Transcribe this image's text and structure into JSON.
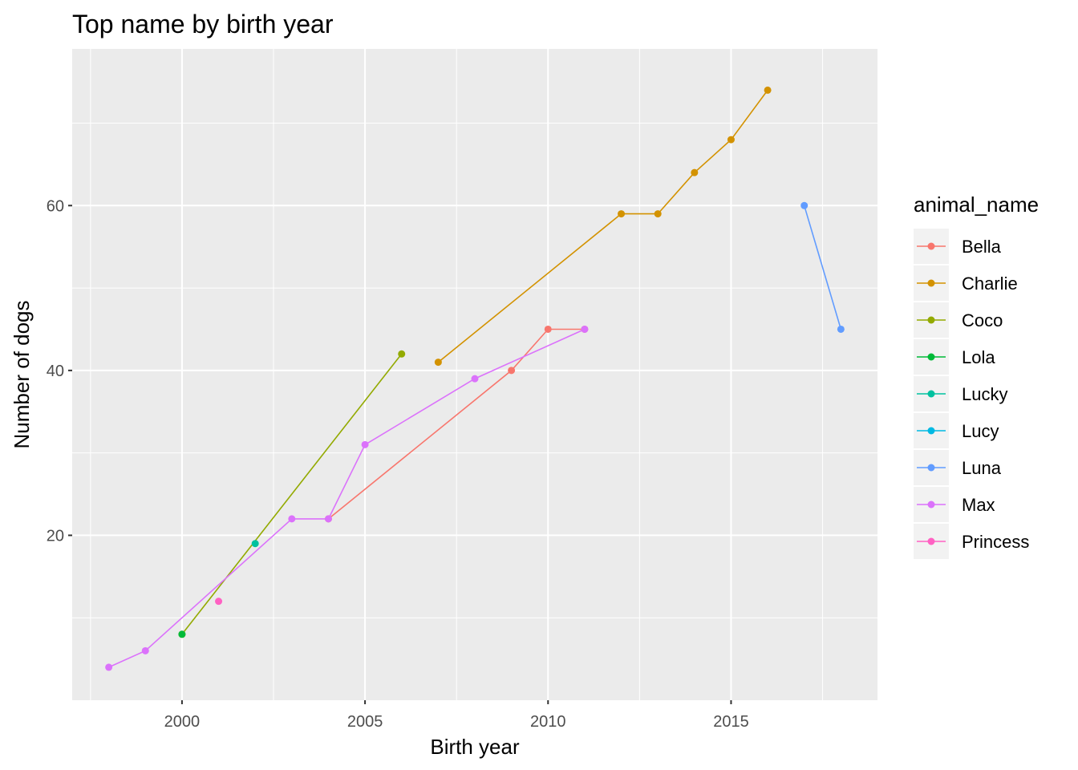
{
  "chart_data": {
    "type": "line",
    "title": "Top name by birth year",
    "xlabel": "Birth year",
    "ylabel": "Number of dogs",
    "xlim": [
      1997,
      2019
    ],
    "ylim": [
      0,
      79
    ],
    "x_major_ticks": [
      2000,
      2005,
      2010,
      2015
    ],
    "x_tick_labels": [
      "2000",
      "2005",
      "2010",
      "2015"
    ],
    "y_major_ticks": [
      20,
      40,
      60
    ],
    "y_tick_labels": [
      "20",
      "40",
      "60"
    ],
    "grid": true,
    "legend": {
      "title": "animal_name",
      "position": "right"
    },
    "series": [
      {
        "name": "Bella",
        "color": "#F8766D",
        "points": [
          [
            2004,
            22
          ],
          [
            2009,
            40
          ],
          [
            2010,
            45
          ],
          [
            2011,
            45
          ]
        ]
      },
      {
        "name": "Charlie",
        "color": "#D39200",
        "points": [
          [
            2007,
            41
          ],
          [
            2012,
            59
          ],
          [
            2013,
            59
          ],
          [
            2014,
            64
          ],
          [
            2015,
            68
          ],
          [
            2016,
            74
          ]
        ]
      },
      {
        "name": "Coco",
        "color": "#93AA00",
        "points": [
          [
            2000,
            8
          ],
          [
            2006,
            42
          ]
        ]
      },
      {
        "name": "Lola",
        "color": "#00BA38",
        "points": [
          [
            2000,
            8
          ]
        ]
      },
      {
        "name": "Lucky",
        "color": "#00C19F",
        "points": [
          [
            2002,
            19
          ]
        ]
      },
      {
        "name": "Lucy",
        "color": "#00B9E3",
        "points": []
      },
      {
        "name": "Luna",
        "color": "#619CFF",
        "points": [
          [
            2017,
            60
          ],
          [
            2018,
            45
          ]
        ]
      },
      {
        "name": "Max",
        "color": "#DB72FB",
        "points": [
          [
            1998,
            4
          ],
          [
            1999,
            6
          ],
          [
            2003,
            22
          ],
          [
            2004,
            22
          ],
          [
            2005,
            31
          ],
          [
            2008,
            39
          ],
          [
            2011,
            45
          ]
        ]
      },
      {
        "name": "Princess",
        "color": "#FF61C3",
        "points": [
          [
            2001,
            12
          ]
        ]
      }
    ]
  }
}
